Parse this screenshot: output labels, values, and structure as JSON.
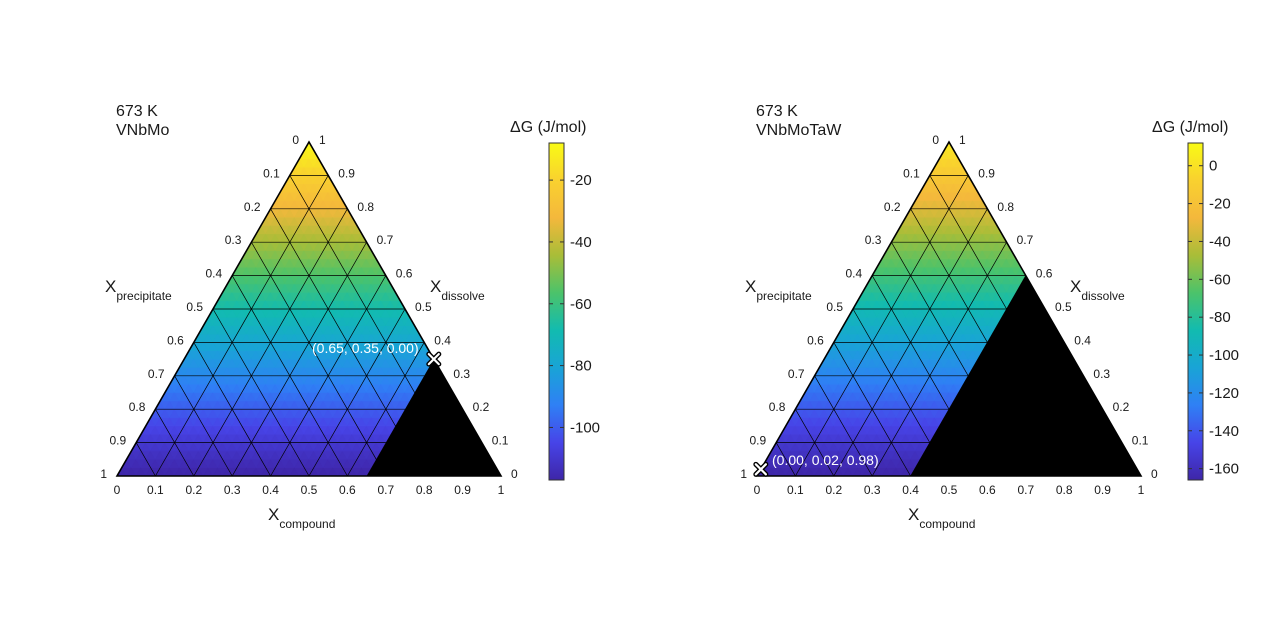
{
  "colormap": [
    "#3e26a8",
    "#4744e8",
    "#2f80f5",
    "#19a4d6",
    "#12bbb0",
    "#4cc36a",
    "#a9bd38",
    "#f4b83c",
    "#f9d12f",
    "#f9fb15"
  ],
  "panels": [
    {
      "temperature": "673 K",
      "system": "VNbMo",
      "xlabel": "X",
      "xlabel_sub": "compound",
      "leftlabel": "X",
      "leftlabel_sub": "precipitate",
      "rightlabel": "X",
      "rightlabel_sub": "dissolve",
      "colorbar_title": "ΔG (J/mol)",
      "chart_data": {
        "type": "heatmap",
        "subtype": "ternary",
        "axes": [
          "X_compound",
          "X_precipitate",
          "X_dissolve"
        ],
        "ticks": [
          "0",
          "0.1",
          "0.2",
          "0.3",
          "0.4",
          "0.5",
          "0.6",
          "0.7",
          "0.8",
          "0.9",
          "1"
        ],
        "colorbar": {
          "ticks": [
            "-20",
            "-40",
            "-60",
            "-80",
            "-100"
          ],
          "tick_values": [
            -20,
            -40,
            -60,
            -80,
            -100
          ],
          "range": [
            -117,
            -8
          ]
        },
        "values_at_corners": {
          "dissolve_1": -8,
          "compound_1": -117,
          "precipitate_1": -117
        },
        "infeasible_region": {
          "color": "#000000",
          "boundary_dissolve_at_zero_precipitate": 0.35
        },
        "marker": {
          "label": "(0.65, 0.35, 0.00)",
          "compound": 0.65,
          "dissolve": 0.35,
          "precipitate": 0.0
        }
      }
    },
    {
      "temperature": "673 K",
      "system": "VNbMoTaW",
      "xlabel": "X",
      "xlabel_sub": "compound",
      "leftlabel": "X",
      "leftlabel_sub": "precipitate",
      "rightlabel": "X",
      "rightlabel_sub": "dissolve",
      "colorbar_title": "ΔG (J/mol)",
      "chart_data": {
        "type": "heatmap",
        "subtype": "ternary",
        "axes": [
          "X_compound",
          "X_precipitate",
          "X_dissolve"
        ],
        "ticks": [
          "0",
          "0.1",
          "0.2",
          "0.3",
          "0.4",
          "0.5",
          "0.6",
          "0.7",
          "0.8",
          "0.9",
          "1"
        ],
        "colorbar": {
          "ticks": [
            "0",
            "-20",
            "-40",
            "-60",
            "-80",
            "-100",
            "-120",
            "-140",
            "-160"
          ],
          "tick_values": [
            0,
            -20,
            -40,
            -60,
            -80,
            -100,
            -120,
            -140,
            -160
          ],
          "range": [
            -166,
            12
          ]
        },
        "values_at_corners": {
          "dissolve_1": 5,
          "compound_1": -166,
          "precipitate_1": -166
        },
        "infeasible_region": {
          "color": "#000000",
          "boundary_dissolve_at_zero_precipitate": 0.6
        },
        "marker": {
          "label": "(0.00, 0.02, 0.98)",
          "compound": 0.0,
          "dissolve": 0.02,
          "precipitate": 0.98
        }
      }
    }
  ]
}
